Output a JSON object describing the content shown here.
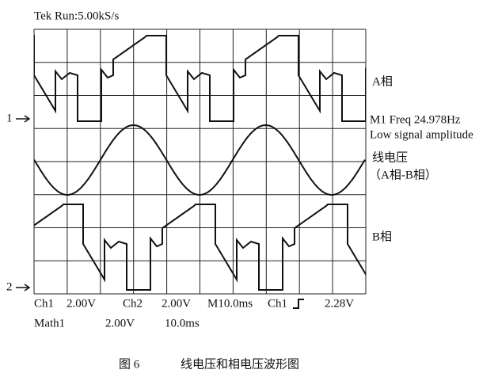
{
  "header": {
    "status": "Tek Run:5.00kS/s"
  },
  "markers": {
    "ch1": "1",
    "ch2": "2"
  },
  "labels": {
    "a_phase": "A相",
    "freq": "M1 Freq 24.978Hz",
    "amplitude": "Low signal amplitude",
    "line_voltage": "线电压",
    "line_voltage_note": "（A相-B相）",
    "b_phase": "B相"
  },
  "footer": {
    "row1": [
      "Ch1",
      "2.00V",
      "Ch2",
      "2.00V",
      "M10.0ms",
      "Ch1",
      "2.28V"
    ],
    "row2": [
      "Math1",
      "2.00V",
      "10.0ms"
    ]
  },
  "caption": {
    "number": "图 6",
    "text": "线电压和相电压波形图"
  }
}
